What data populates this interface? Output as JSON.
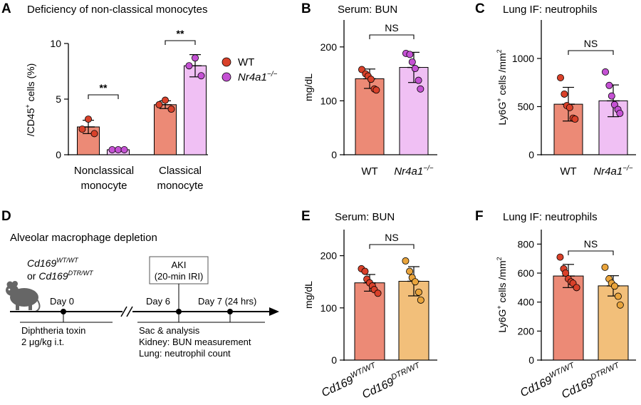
{
  "colors": {
    "wt": "#ec8a76",
    "ko": "#f0c0f4",
    "dtr": "#f2bf7a",
    "wt_dot": "#d9412a",
    "ko_dot": "#c451d3",
    "dtr_dot": "#e9a43c",
    "axis": "#000000"
  },
  "legend": {
    "wt": "WT",
    "ko": "Nr4a1",
    "ko_sup": "−/−"
  },
  "diagram": {
    "label": "D",
    "title": "Alveolar macrophage depletion",
    "mouse_line1": "Cd169",
    "mouse_line1_sup": "WT/WT",
    "mouse_line2_prefix": "or ",
    "mouse_line2": "Cd169",
    "mouse_line2_sup": "DTR/WT",
    "mouse_icon": "mouse-icon",
    "box_line1": "AKI",
    "box_line2": "(20-min IRI)",
    "day0": "Day 0",
    "day6": "Day 6",
    "day7": "Day 7 (24 hrs)",
    "note1_line1": "Diphtheria toxin",
    "note1_line2": "2 μg/kg i.t.",
    "note2_line1": "Sac & analysis",
    "note2_line2": "Kidney: BUN measurement",
    "note2_line3": "Lung: neutrophil count"
  },
  "chart_data": [
    {
      "id": "A",
      "type": "bar",
      "panel_label": "A",
      "title": "Deficiency of non-classical monocytes",
      "ylabel_prefix": "/CD45",
      "ylabel_sup": "+",
      "ylabel_suffix": " cells (%)",
      "ylim": [
        0,
        10
      ],
      "yticks": [
        0,
        5,
        10
      ],
      "ytick_labels": [
        "0",
        "5",
        "10"
      ],
      "categories": [
        "Nonclassical monocyte",
        "Classical monocyte"
      ],
      "category_lines": [
        [
          "Nonclassical",
          "monocyte"
        ],
        [
          "Classical",
          "monocyte"
        ]
      ],
      "series": [
        {
          "name": "WT",
          "color_key": "wt",
          "values": [
            2.5,
            4.5
          ],
          "sd": [
            0.6,
            0.35
          ],
          "points": [
            [
              2.3,
              3.2,
              1.9
            ],
            [
              4.5,
              4.9,
              4.1
            ]
          ]
        },
        {
          "name": "Nr4a1−/−",
          "color_key": "ko",
          "values": [
            0.45,
            8.0
          ],
          "sd": [
            0.05,
            1.0
          ],
          "points": [
            [
              0.45,
              0.45,
              0.45
            ],
            [
              8.0,
              8.7,
              7.1
            ]
          ]
        }
      ],
      "significance": [
        "**",
        "**"
      ]
    },
    {
      "id": "B",
      "type": "bar",
      "panel_label": "B",
      "title": "Serum: BUN",
      "ylabel": "mg/dL",
      "ylim": [
        0,
        250
      ],
      "yticks": [
        0,
        100,
        200
      ],
      "ytick_labels": [
        "0",
        "100",
        "200"
      ],
      "categories": [
        "WT",
        "Nr4a1"
      ],
      "category_sup": [
        "",
        "−/−"
      ],
      "color_keys": [
        "wt",
        "ko"
      ],
      "values": [
        141,
        162
      ],
      "sd": [
        18,
        28
      ],
      "points": [
        [
          158,
          150,
          146,
          140,
          122,
          120
        ],
        [
          188,
          186,
          172,
          160,
          138,
          122
        ]
      ],
      "significance": "NS"
    },
    {
      "id": "C",
      "type": "bar",
      "panel_label": "C",
      "title": "Lung IF: neutrophils",
      "ylabel_prefix": "Ly6G",
      "ylabel_sup": "+",
      "ylabel_suffix": " cells /mm",
      "ylabel_sup2": "2",
      "ylim": [
        0,
        1400
      ],
      "yticks": [
        0,
        500,
        1000
      ],
      "ytick_labels": [
        "0",
        "500",
        "1000"
      ],
      "categories": [
        "WT",
        "Nr4a1"
      ],
      "category_sup": [
        "",
        "−/−"
      ],
      "color_keys": [
        "wt",
        "ko"
      ],
      "values": [
        525,
        560
      ],
      "sd": [
        175,
        165
      ],
      "points": [
        [
          800,
          630,
          510,
          490,
          380,
          370
        ],
        [
          860,
          720,
          610,
          520,
          470,
          430
        ]
      ],
      "significance": "NS"
    },
    {
      "id": "E",
      "type": "bar",
      "panel_label": "E",
      "title": "Serum: BUN",
      "ylabel": "mg/dL",
      "ylim": [
        0,
        250
      ],
      "yticks": [
        0,
        100,
        200
      ],
      "ytick_labels": [
        "0",
        "100",
        "200"
      ],
      "categories": [
        "Cd169",
        "Cd169"
      ],
      "category_sup": [
        "WT/WT",
        "DTR/WT"
      ],
      "color_keys": [
        "wt",
        "dtr"
      ],
      "values": [
        148,
        151
      ],
      "sd": [
        16,
        28
      ],
      "points": [
        [
          175,
          170,
          155,
          148,
          142,
          135,
          128
        ],
        [
          190,
          170,
          158,
          150,
          130,
          115
        ]
      ],
      "significance": "NS"
    },
    {
      "id": "F",
      "type": "bar",
      "panel_label": "F",
      "title": "Lung IF: neutrophils",
      "ylabel_prefix": "Ly6G",
      "ylabel_sup": "+",
      "ylabel_suffix": " cells /mm",
      "ylabel_sup2": "2",
      "ylim": [
        0,
        900
      ],
      "yticks": [
        0,
        200,
        400,
        600,
        800
      ],
      "ytick_labels": [
        "0",
        "200",
        "400",
        "600",
        "800"
      ],
      "categories": [
        "Cd169",
        "Cd169"
      ],
      "category_sup": [
        "WT/WT",
        "DTR/WT"
      ],
      "color_keys": [
        "wt",
        "dtr"
      ],
      "values": [
        580,
        512
      ],
      "sd": [
        80,
        70
      ],
      "points": [
        [
          710,
          630,
          600,
          560,
          540,
          530,
          500
        ],
        [
          640,
          560,
          530,
          510,
          440,
          380
        ]
      ],
      "significance": "NS"
    }
  ]
}
